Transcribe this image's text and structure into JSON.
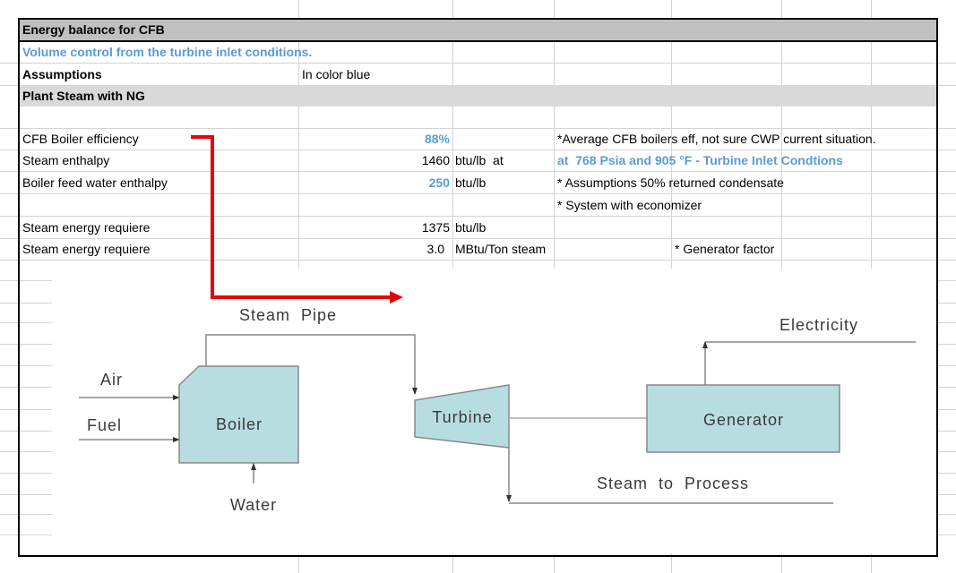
{
  "sheet": {
    "title": "Energy balance for CFB",
    "subtitle": "Volume control from the turbine inlet conditions.",
    "assumptions_label": "Assumptions",
    "assumptions_value": "In color blue",
    "section": "Plant Steam with NG",
    "rows": [
      {
        "label": "CFB Boiler efficiency",
        "value": "88%",
        "unit": "",
        "note": "*Average CFB boilers eff, not sure CWP current situation."
      },
      {
        "label": "Steam enthalpy",
        "value": "1460",
        "unit": "btu/lb  at",
        "note": "at  768 Psia and 905 °F - Turbine Inlet Condtions"
      },
      {
        "label": "Boiler feed water enthalpy",
        "value": "250",
        "unit": "btu/lb",
        "note": "* Assumptions 50% returned condensate"
      },
      {
        "label": "",
        "value": "",
        "unit": "",
        "note": "* System with economizer"
      },
      {
        "label": "Steam energy requiere",
        "value": "1375",
        "unit": "btu/lb",
        "note": ""
      },
      {
        "label": "Steam energy requiere",
        "value": "3.0",
        "unit": "MBtu/Ton steam",
        "note": "* Generator factor"
      }
    ]
  },
  "diagram": {
    "steam_pipe": "Steam  Pipe",
    "air": "Air",
    "fuel": "Fuel",
    "boiler": "Boiler",
    "water": "Water",
    "turbine": "Turbine",
    "generator": "Generator",
    "electricity": "Electricity",
    "steam_to_process": "Steam  to  Process"
  },
  "colors": {
    "title_band": "#c0c0c0",
    "section_band": "#d9d9d9",
    "assumption_blue": "#5b9bd5",
    "equipment_fill": "#b8dde1",
    "annotation_arrow": "#e8000b"
  }
}
